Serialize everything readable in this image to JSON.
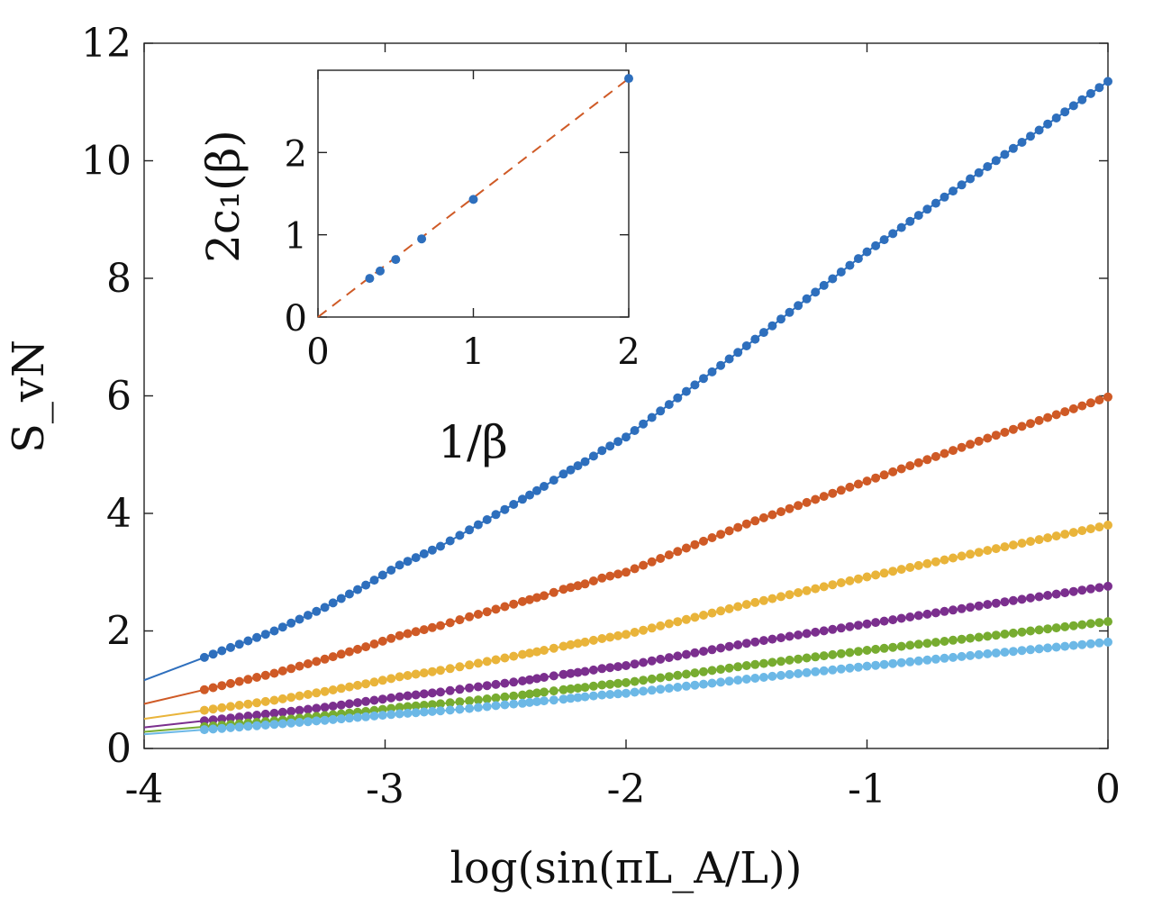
{
  "chart_data": [
    {
      "type": "line",
      "xlabel": "log(sin(πL_A/L))",
      "ylabel": "S_vN",
      "xlim": [
        -4,
        0
      ],
      "ylim": [
        0,
        12
      ],
      "xticks": [
        "-4",
        "-3",
        "-2",
        "-1",
        "0"
      ],
      "yticks": [
        "0",
        "2",
        "4",
        "6",
        "8",
        "10",
        "12"
      ],
      "grid": false,
      "series": [
        {
          "color": "#2E6FBD",
          "x": [
            -3.75,
            -3.46,
            -3.25,
            -3.08,
            -2.94,
            -2.77,
            -2.65,
            -2.54,
            -2.43,
            -2.34,
            -2.26,
            -2.17,
            -2.1,
            -2.0,
            -1.5,
            -1.0,
            -0.5,
            0
          ],
          "values": [
            1.55,
            2.0,
            2.4,
            2.78,
            3.12,
            3.44,
            3.72,
            3.98,
            4.24,
            4.46,
            4.67,
            4.88,
            5.07,
            5.3,
            6.85,
            8.45,
            9.9,
            11.35
          ]
        },
        {
          "color": "#CF5A26",
          "x": [
            -3.75,
            -3.46,
            -3.25,
            -3.08,
            -2.94,
            -2.77,
            -2.65,
            -2.54,
            -2.43,
            -2.34,
            -2.26,
            -2.17,
            -2.1,
            -2.0,
            -1.5,
            -1.0,
            -0.5,
            0
          ],
          "values": [
            1.0,
            1.28,
            1.52,
            1.73,
            1.92,
            2.09,
            2.24,
            2.37,
            2.5,
            2.6,
            2.71,
            2.8,
            2.9,
            3.0,
            3.82,
            4.55,
            5.28,
            5.98
          ]
        },
        {
          "color": "#E9B43A",
          "x": [
            -3.75,
            -3.46,
            -3.25,
            -3.08,
            -2.94,
            -2.77,
            -2.65,
            -2.54,
            -2.43,
            -2.34,
            -2.26,
            -2.17,
            -2.1,
            -2.0,
            -1.5,
            -1.0,
            -0.5,
            0
          ],
          "values": [
            0.65,
            0.82,
            0.97,
            1.1,
            1.22,
            1.33,
            1.42,
            1.51,
            1.6,
            1.67,
            1.74,
            1.81,
            1.87,
            1.94,
            2.45,
            2.92,
            3.37,
            3.8
          ]
        },
        {
          "color": "#7B2F8E",
          "x": [
            -3.75,
            -3.46,
            -3.25,
            -3.08,
            -2.94,
            -2.77,
            -2.65,
            -2.54,
            -2.43,
            -2.34,
            -2.26,
            -2.17,
            -2.1,
            -2.0,
            -1.5,
            -1.0,
            -0.5,
            0
          ],
          "values": [
            0.47,
            0.6,
            0.7,
            0.8,
            0.88,
            0.96,
            1.03,
            1.09,
            1.15,
            1.21,
            1.26,
            1.31,
            1.36,
            1.41,
            1.79,
            2.12,
            2.45,
            2.76
          ]
        },
        {
          "color": "#77AC30",
          "x": [
            -3.75,
            -3.46,
            -3.25,
            -3.08,
            -2.94,
            -2.77,
            -2.65,
            -2.54,
            -2.43,
            -2.34,
            -2.26,
            -2.17,
            -2.1,
            -2.0,
            -1.5,
            -1.0,
            -0.5,
            0
          ],
          "values": [
            0.37,
            0.47,
            0.56,
            0.63,
            0.7,
            0.76,
            0.81,
            0.86,
            0.91,
            0.96,
            1.0,
            1.04,
            1.08,
            1.12,
            1.41,
            1.67,
            1.91,
            2.16
          ]
        },
        {
          "color": "#6CB8E6",
          "x": [
            -3.75,
            -3.46,
            -3.25,
            -3.08,
            -2.94,
            -2.77,
            -2.65,
            -2.54,
            -2.43,
            -2.34,
            -2.26,
            -2.17,
            -2.1,
            -2.0,
            -1.5,
            -1.0,
            -0.5,
            0
          ],
          "values": [
            0.32,
            0.41,
            0.48,
            0.54,
            0.59,
            0.64,
            0.68,
            0.73,
            0.77,
            0.81,
            0.84,
            0.88,
            0.91,
            0.94,
            1.18,
            1.4,
            1.61,
            1.81
          ]
        }
      ]
    },
    {
      "type": "scatter",
      "xlabel": "1/β",
      "ylabel": "2c₁(β)",
      "xlim": [
        0,
        2
      ],
      "ylim": [
        0,
        3
      ],
      "xticks": [
        "0",
        "1",
        "2"
      ],
      "yticks": [
        "0",
        "1",
        "2"
      ],
      "grid": false,
      "points": {
        "color": "#2E6FBD",
        "x": [
          0.333,
          0.4,
          0.5,
          0.667,
          1.0,
          2.0
        ],
        "values": [
          0.47,
          0.56,
          0.7,
          0.95,
          1.43,
          2.9
        ]
      },
      "fit_line": {
        "color": "#CF5A26",
        "style": "dashed",
        "x": [
          0,
          2
        ],
        "values": [
          0,
          2.9
        ]
      }
    }
  ]
}
